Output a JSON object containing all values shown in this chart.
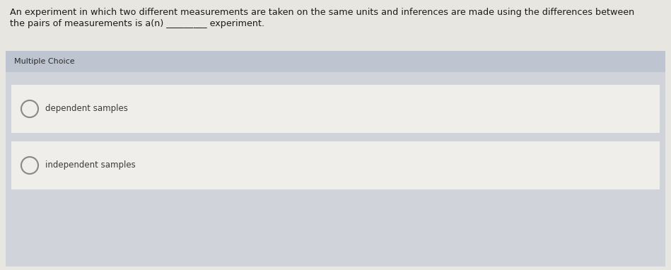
{
  "question_line1": "An experiment in which two different measurements are taken on the same units and inferences are made using the differences between",
  "question_line2": "the pairs of measurements is a(n) _________ experiment.",
  "section_label": "Multiple Choice",
  "options": [
    "dependent samples",
    "independent samples"
  ],
  "page_bg": "#e8e6e0",
  "section_header_bg": "#bfc5d0",
  "section_body_bg": "#d0d3da",
  "option_bg": "#f0eeeb",
  "option_stripe_bg": "#dcdde2",
  "text_color": "#1a1a1a",
  "option_text_color": "#3a3a3a",
  "section_text_color": "#2a2a2a",
  "circle_edge_color": "#888888",
  "question_fontsize": 9.2,
  "section_fontsize": 8.0,
  "option_fontsize": 8.5
}
